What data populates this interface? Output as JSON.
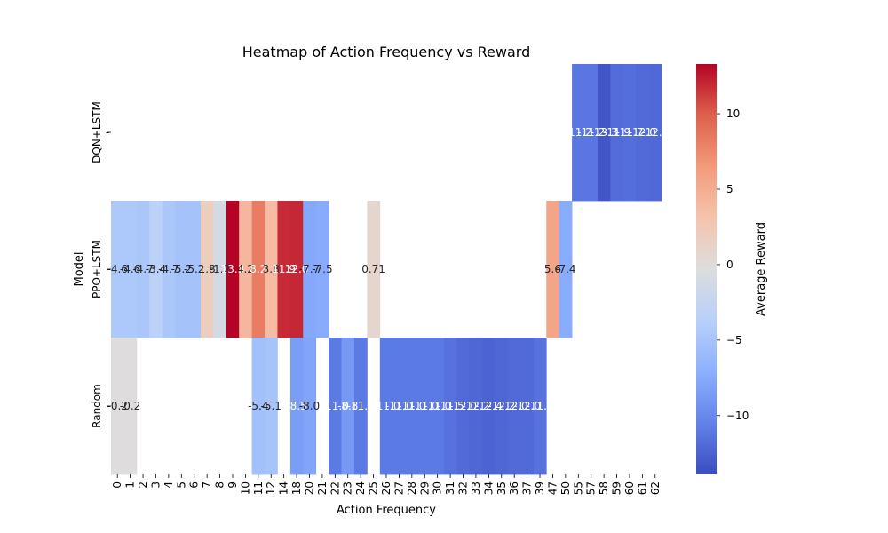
{
  "chart_data": {
    "type": "heatmap",
    "title": "Heatmap of Action Frequency vs Reward",
    "xlabel": "Action Frequency",
    "ylabel": "Model",
    "colorbar_label": "Average Reward",
    "colormap": "coolwarm",
    "vmin": -13.9,
    "vmax": 13.3,
    "colorbar_ticks": [
      -10,
      -5,
      0,
      5,
      10
    ],
    "rows": [
      "DQN+LSTM",
      "PPO+LSTM",
      "Random"
    ],
    "columns": [
      "0",
      "1",
      "2",
      "3",
      "4",
      "5",
      "6",
      "7",
      "8",
      "9",
      "10",
      "11",
      "12",
      "14",
      "18",
      "20",
      "21",
      "22",
      "23",
      "24",
      "25",
      "26",
      "27",
      "28",
      "29",
      "30",
      "31",
      "32",
      "33",
      "34",
      "35",
      "36",
      "37",
      "39",
      "47",
      "50",
      "55",
      "57",
      "58",
      "59",
      "60",
      "61",
      "62"
    ],
    "row_labels_display": [
      "-",
      "",
      ""
    ],
    "values": [
      [
        null,
        null,
        null,
        null,
        null,
        null,
        null,
        null,
        null,
        null,
        null,
        null,
        null,
        null,
        null,
        null,
        null,
        null,
        null,
        null,
        null,
        null,
        null,
        null,
        null,
        null,
        null,
        null,
        null,
        null,
        null,
        null,
        null,
        null,
        null,
        null,
        -11.2,
        -11.2,
        -13.3,
        -11.9,
        -11.7,
        -12.0,
        -12.1
      ],
      [
        -4.6,
        -4.6,
        -4.7,
        -3.4,
        -4.7,
        -5.2,
        -5.2,
        1.8,
        -1.2,
        13.3,
        4.2,
        8.2,
        3.8,
        11.9,
        12.0,
        -7.7,
        -7.5,
        null,
        null,
        null,
        0.71,
        null,
        null,
        null,
        null,
        null,
        null,
        null,
        null,
        null,
        null,
        null,
        null,
        null,
        5.6,
        -7.4,
        null,
        null,
        null,
        null,
        null,
        null,
        null
      ],
      [
        -0.2,
        -0.2,
        null,
        null,
        null,
        null,
        null,
        null,
        null,
        null,
        null,
        -5.4,
        -5.1,
        null,
        -8.5,
        -8.0,
        null,
        -11.0,
        -8.8,
        -11.0,
        null,
        -11.0,
        -11.0,
        -11.0,
        -11.0,
        -11.0,
        -11.5,
        -12.0,
        -12.2,
        -12.4,
        -12.2,
        -12.0,
        -12.0,
        -11.5,
        null,
        null,
        null,
        null,
        null,
        null,
        null,
        null,
        null
      ]
    ],
    "cell_labels": [
      [
        null,
        null,
        null,
        null,
        null,
        null,
        null,
        null,
        null,
        null,
        null,
        null,
        null,
        null,
        null,
        null,
        null,
        null,
        null,
        null,
        null,
        null,
        null,
        null,
        null,
        null,
        null,
        null,
        null,
        null,
        null,
        null,
        null,
        null,
        null,
        null,
        "-11.2",
        "-11.2",
        "-13.3",
        "-11.9",
        "-11.7",
        "-12.0",
        "-12.1"
      ],
      [
        "-4.6",
        "-4.6",
        "-4.7",
        "-3.4",
        "-4.7",
        "-5.2",
        "-5.2",
        "1.8",
        "-1.2",
        "13.3",
        "4.2",
        "8.2",
        "3.8",
        "11.9",
        "12.0",
        "-7.7",
        "-7.5",
        null,
        null,
        null,
        "0.71",
        null,
        null,
        null,
        null,
        null,
        null,
        null,
        null,
        null,
        null,
        null,
        null,
        null,
        "5.6",
        "-7.4",
        null,
        null,
        null,
        null,
        null,
        null,
        null
      ],
      [
        "-0.2",
        "-0.2",
        null,
        null,
        null,
        null,
        null,
        null,
        null,
        null,
        null,
        "-5.4",
        "-5.1",
        null,
        "-8.5",
        "-8.0",
        null,
        "-11.0",
        "-8.8",
        "-11.0",
        null,
        "-11.0",
        "-11.0",
        "-11.0",
        "-11.0",
        "-11.0",
        "-11.5",
        "-12.0",
        "-12.2",
        "-12.4",
        "-12.2",
        "-12.0",
        "-12.0",
        "-11.5",
        null,
        null,
        null,
        null,
        null,
        null,
        null,
        null,
        null
      ]
    ]
  }
}
